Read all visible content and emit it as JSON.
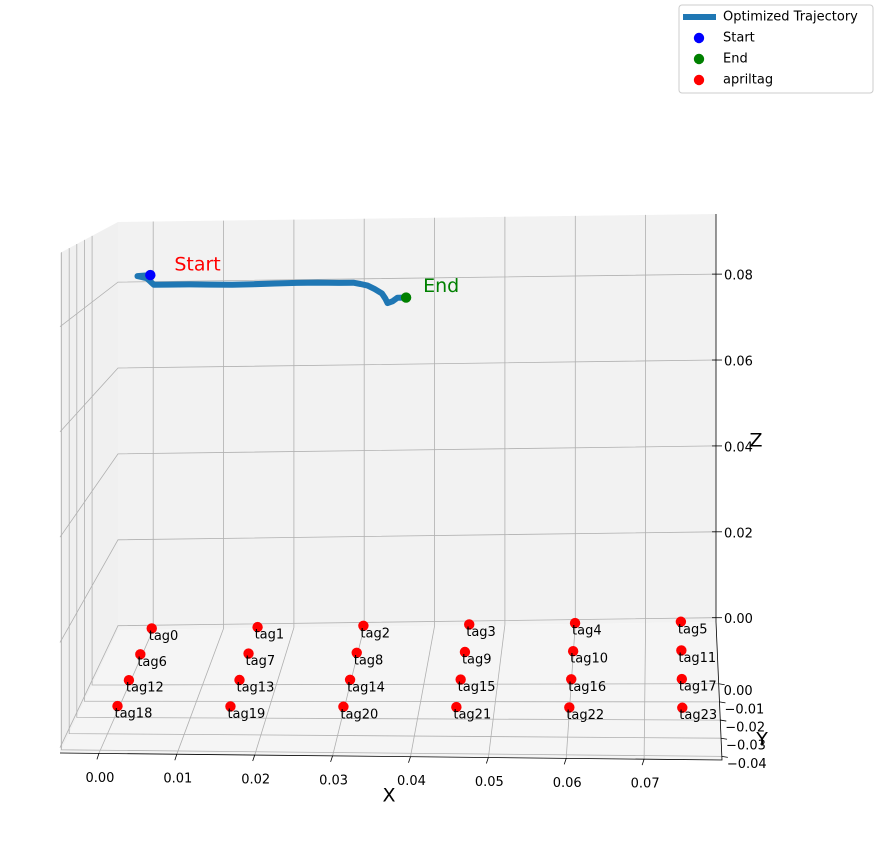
{
  "chart_data": {
    "type": "line3d",
    "xlabel": "X",
    "ylabel": "Y",
    "zlabel": "Z",
    "xlim": [
      -0.005,
      0.08
    ],
    "ylim": [
      -0.042,
      0.034
    ],
    "zlim": [
      -0.001,
      0.094
    ],
    "xticks": [
      {
        "value": 0,
        "label": "0.00"
      },
      {
        "value": 0.01,
        "label": "0.01"
      },
      {
        "value": 0.02,
        "label": "0.02"
      },
      {
        "value": 0.03,
        "label": "0.03"
      },
      {
        "value": 0.04,
        "label": "0.04"
      },
      {
        "value": 0.05,
        "label": "0.05"
      },
      {
        "value": 0.06,
        "label": "0.06"
      },
      {
        "value": 0.07,
        "label": "0.07"
      }
    ],
    "yticks": [
      {
        "value": 0,
        "label": "0.00"
      },
      {
        "value": -0.01,
        "label": "−0.01"
      },
      {
        "value": -0.02,
        "label": "−0.02"
      },
      {
        "value": -0.03,
        "label": "−0.03"
      },
      {
        "value": -0.04,
        "label": "−0.04"
      }
    ],
    "zticks": [
      {
        "value": 0,
        "label": "0.00"
      },
      {
        "value": 0.02,
        "label": "0.02"
      },
      {
        "value": 0.04,
        "label": "0.04"
      },
      {
        "value": 0.06,
        "label": "0.06"
      },
      {
        "value": 0.08,
        "label": "0.08"
      }
    ],
    "grid": true,
    "legend_loc": "upper right",
    "series": [
      {
        "name": "Optimized Trajectory",
        "color": "#1f77b4",
        "type": "line",
        "x": [
          0.0005,
          -0.0013,
          0.0,
          0.001,
          0.003,
          0.006,
          0.009,
          0.012,
          0.015,
          0.018,
          0.021,
          0.024,
          0.027,
          0.029,
          0.03,
          0.031,
          0.032,
          0.033,
          0.0335,
          0.0338,
          0.0345,
          0.0352,
          0.0364
        ],
        "y": [
          0.025,
          0.025,
          0.025,
          0.025,
          0.025,
          0.025,
          0.025,
          0.025,
          0.025,
          0.025,
          0.025,
          0.025,
          0.025,
          0.025,
          0.025,
          0.025,
          0.025,
          0.025,
          0.025,
          0.025,
          0.025,
          0.025,
          0.025
        ],
        "z": [
          0.0827,
          0.0825,
          0.082,
          0.0805,
          0.0805,
          0.0805,
          0.0804,
          0.0803,
          0.0804,
          0.0805,
          0.0806,
          0.0806,
          0.0805,
          0.0805,
          0.0802,
          0.0798,
          0.079,
          0.078,
          0.0768,
          0.0758,
          0.0762,
          0.077,
          0.077
        ]
      },
      {
        "name": "Start",
        "color": "#0000ff",
        "type": "scatter",
        "x": [
          0.0005
        ],
        "y": [
          0.025
        ],
        "z": [
          0.0827
        ]
      },
      {
        "name": "End",
        "color": "#008000",
        "type": "scatter",
        "x": [
          0.0364
        ],
        "y": [
          0.025
        ],
        "z": [
          0.077
        ]
      },
      {
        "name": "apriltag",
        "color": "#ff0000",
        "type": "scatter",
        "x": [
          0,
          0.015,
          0.03,
          0.045,
          0.06,
          0.075,
          0,
          0.015,
          0.03,
          0.045,
          0.06,
          0.075,
          0,
          0.015,
          0.03,
          0.045,
          0.06,
          0.075,
          0,
          0.015,
          0.03,
          0.045,
          0.06,
          0.075
        ],
        "y": [
          0.032,
          0.032,
          0.032,
          0.032,
          0.032,
          0.032,
          0.016,
          0.016,
          0.016,
          0.016,
          0.016,
          0.016,
          0,
          0,
          0,
          0,
          0,
          0,
          -0.016,
          -0.016,
          -0.016,
          -0.016,
          -0.016,
          -0.016
        ],
        "z": [
          0,
          0,
          0,
          0,
          0,
          0,
          0,
          0,
          0,
          0,
          0,
          0,
          0,
          0,
          0,
          0,
          0,
          0,
          0,
          0,
          0,
          0,
          0,
          0
        ],
        "labels": [
          "tag0",
          "tag1",
          "tag2",
          "tag3",
          "tag4",
          "tag5",
          "tag6",
          "tag7",
          "tag8",
          "tag9",
          "tag10",
          "tag11",
          "tag12",
          "tag13",
          "tag14",
          "tag15",
          "tag16",
          "tag17",
          "tag18",
          "tag19",
          "tag20",
          "tag21",
          "tag22",
          "tag23"
        ]
      }
    ],
    "annotations": [
      {
        "text": "Start",
        "color": "#ff0000"
      },
      {
        "text": "End",
        "color": "#008000"
      }
    ]
  }
}
